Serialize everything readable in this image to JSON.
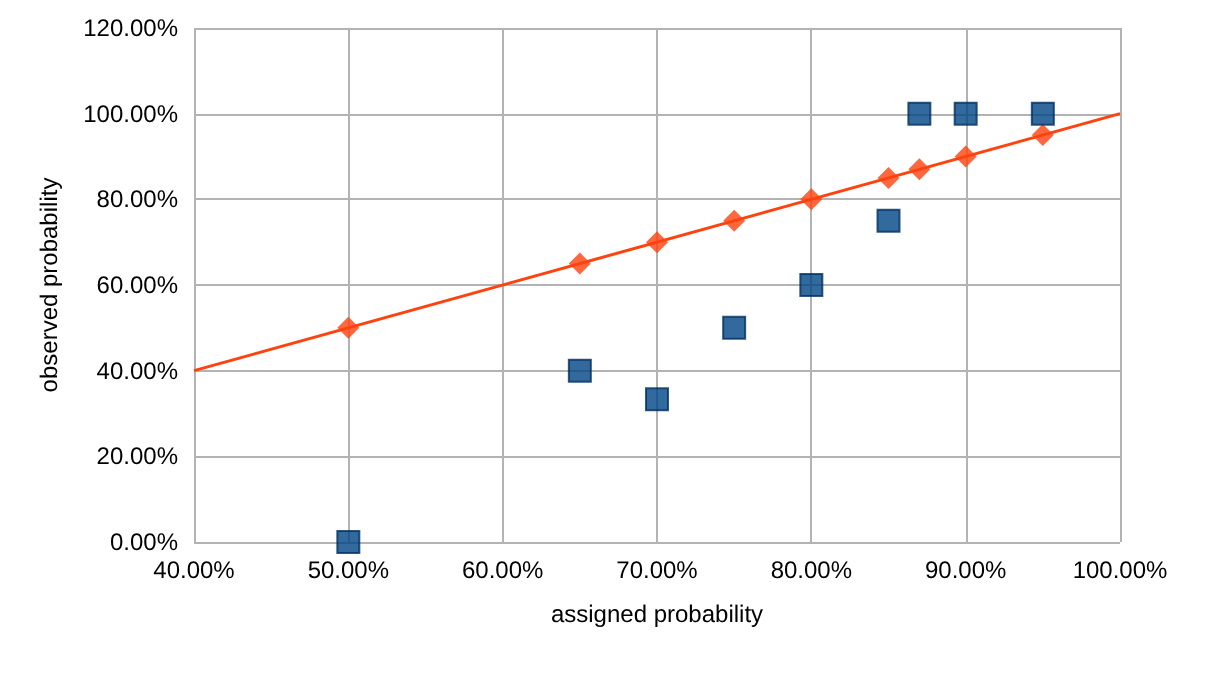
{
  "chart_data": {
    "type": "scatter",
    "xlabel": "assigned probability",
    "ylabel": "observed probability",
    "xlim": [
      40,
      100
    ],
    "xticks": [
      {
        "value": 40,
        "label": "40.00%"
      },
      {
        "value": 50,
        "label": "50.00%"
      },
      {
        "value": 60,
        "label": "60.00%"
      },
      {
        "value": 70,
        "label": "70.00%"
      },
      {
        "value": 80,
        "label": "80.00%"
      },
      {
        "value": 90,
        "label": "90.00%"
      },
      {
        "value": 100,
        "label": "100.00%"
      }
    ],
    "ylim": [
      0,
      120
    ],
    "yticks": [
      {
        "value": 0,
        "label": "0.00%"
      },
      {
        "value": 20,
        "label": "20.00%"
      },
      {
        "value": 40,
        "label": "40.00%"
      },
      {
        "value": 60,
        "label": "60.00%"
      },
      {
        "value": 80,
        "label": "80.00%"
      },
      {
        "value": 100,
        "label": "100.00%"
      },
      {
        "value": 120,
        "label": "120.00%"
      }
    ],
    "grid": true,
    "series": [
      {
        "type": "line",
        "color": "#ff420e",
        "marker": "none",
        "line_style": "solid",
        "x": [
          40,
          100
        ],
        "values": [
          40,
          100
        ]
      },
      {
        "color": "#ff420e",
        "marker": "diamond",
        "x": [
          50,
          65,
          70,
          75,
          80,
          85,
          87,
          90,
          95
        ],
        "values": [
          50,
          65,
          70,
          75,
          80,
          85,
          87,
          90,
          95
        ]
      },
      {
        "color": "#004586",
        "marker": "square",
        "x": [
          50,
          65,
          70,
          75,
          80,
          85,
          87,
          90,
          95
        ],
        "values": [
          0,
          40,
          33.3,
          50,
          60,
          75,
          100,
          100,
          100
        ]
      }
    ]
  }
}
